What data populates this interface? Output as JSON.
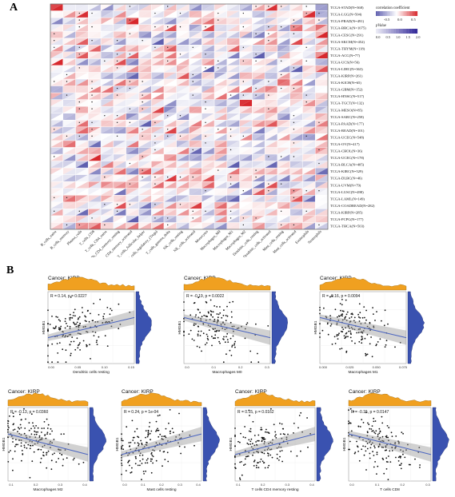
{
  "panels": {
    "a": "A",
    "b": "B"
  },
  "chart_data": [
    {
      "type": "heatmap",
      "rows": [
        "TCGA-STAD(N=368)",
        "TCGA-LGG(N=504)",
        "TCGA-PRAD(N=491)",
        "TCGA-BRCA(N=1075)",
        "TCGA-CESC(N=291)",
        "TCGA-SKCM(N=452)",
        "TCGA-THYM(N=118)",
        "TCGA-ACC(N=77)",
        "TCGA-UCS(N=56)",
        "TCGA-LIHC(N=363)",
        "TCGA-KIRP(N=261)",
        "TCGA-KICH(N=65)",
        "TCGA-GBM(N=152)",
        "TCGA-HNSC(N=517)",
        "TCGA-TGCT(N=132)",
        "TCGA-MESO(N=85)",
        "TCGA-SARC(N=258)",
        "TCGA-PAAD(N=177)",
        "TCGA-READ(N=101)",
        "TCGA-UCEC(N=548)",
        "TCGA-OV(N=417)",
        "TCGA-CHOL(N=36)",
        "TCGA-UCEC(N=178)",
        "TCGA-BLCA(N=405)",
        "TCGA-KIRC(N=529)",
        "TCGA-DLBC(N=46)",
        "TCGA-UVM(N=79)",
        "TCGA-LUSC(N=498)",
        "TCGA-LAML(N=149)",
        "TCGA-COADREAD(N=282)",
        "TCGA-KIRP(N=285)",
        "TCGA-PCPG(N=177)",
        "TCGA-THCA(N=503)"
      ],
      "columns": [
        "B_cells_naive",
        "B_cells_memory",
        "Plasma_cells",
        "T_cells_CD8",
        "T_cells_CD4_naive",
        "T_cells_CD4_memory_resting",
        "T_cells_CD4_memory_activated",
        "T_cells_follicular_helper",
        "T_cells_regulatory_(Tregs)",
        "T_cells_gamma_delta",
        "NK_cells_resting",
        "NK_cells_activated",
        "Monocytes",
        "Macrophages_M0",
        "Macrophages_M1",
        "Macrophages_M2",
        "Dendritic_cells_resting",
        "Dendritic_cells_activated",
        "Mast_cells_resting",
        "Mast_cells_activated",
        "Eosinophils",
        "Neutrophils"
      ],
      "legend": {
        "color_title": "correlation coefficient",
        "color_ticks": [
          "-0.5",
          "0.0",
          "0.5"
        ],
        "size_title": "pValue",
        "size_ticks": [
          "0.0",
          "0.5",
          "1.0",
          "1.5",
          "2.0"
        ]
      }
    },
    {
      "type": "scatter",
      "cancer": "Cancer: KIRP",
      "stat": "R = 0.14, p = 0.0227",
      "xlabel": "Dendritic cells resting",
      "ylabel": "HMGB1",
      "xticks": [
        "0.00",
        "0.05",
        "0.10",
        "0.15"
      ],
      "slope": "positive"
    },
    {
      "type": "scatter",
      "cancer": "Cancer: KIRP",
      "stat": "R = -0.19, p = 0.0022",
      "xlabel": "Macrophages M0",
      "ylabel": "HMGB1",
      "xticks": [
        "0.0",
        "0.1",
        "0.2",
        "0.3"
      ],
      "slope": "negative"
    },
    {
      "type": "scatter",
      "cancer": "Cancer: KIRP",
      "stat": "R = -0.16, p = 0.0094",
      "xlabel": "Macrophages M1",
      "ylabel": "HMGB1",
      "xticks": [
        "0.000",
        "0.025",
        "0.050",
        "0.075"
      ],
      "slope": "negative"
    },
    {
      "type": "scatter",
      "cancer": "Cancer: KIRP",
      "stat": "R = -0.13, p = 0.0360",
      "xlabel": "Macrophages M2",
      "ylabel": "HMGB1",
      "xticks": [
        "0.1",
        "0.2",
        "0.3",
        "0.4"
      ],
      "slope": "negative"
    },
    {
      "type": "scatter",
      "cancer": "Cancer: KIRP",
      "stat": "R = 0.24, p = 1e-04",
      "xlabel": "Mast cells resting",
      "ylabel": "HMGB1",
      "xticks": [
        "0.0",
        "0.1",
        "0.2",
        "0.3",
        "0.4"
      ],
      "slope": "positive"
    },
    {
      "type": "scatter",
      "cancer": "Cancer: KIRP",
      "stat": "R = 0.15, p = 0.0162",
      "xlabel": "T cells CD4 memory resting",
      "ylabel": "HMGB1",
      "xticks": [
        "0.1",
        "0.2",
        "0.3",
        "0.4"
      ],
      "slope": "positive"
    },
    {
      "type": "scatter",
      "cancer": "Cancer: KIRP",
      "stat": "R = -0.15, p = 0.0147",
      "xlabel": "T cells CD8",
      "ylabel": "HMGB1",
      "xticks": [
        "0.0",
        "0.1",
        "0.2",
        "0.3"
      ],
      "slope": "negative"
    }
  ]
}
